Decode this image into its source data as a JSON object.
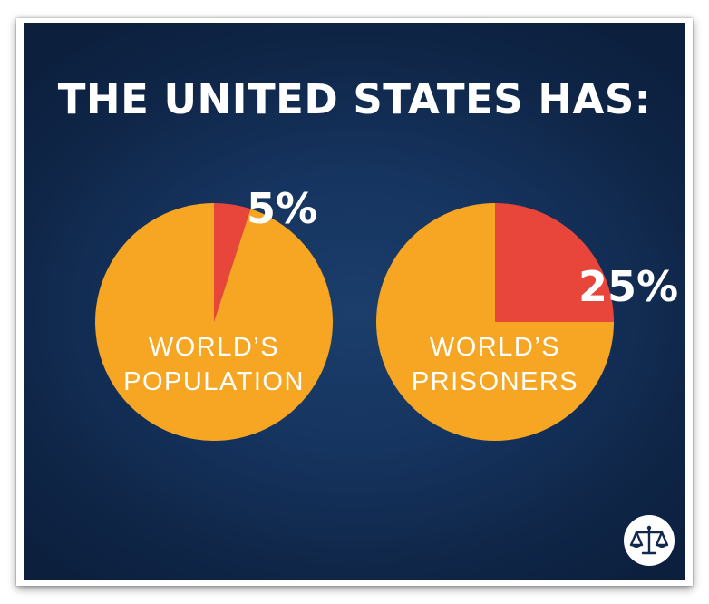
{
  "headline": "THE UNITED STATES HAS:",
  "chart_data": [
    {
      "type": "pie",
      "slices": [
        {
          "label": "5%",
          "value": 5,
          "color": "#e8463a"
        },
        {
          "label": "",
          "value": 95,
          "color": "#f6a623"
        }
      ],
      "caption": [
        "WORLD’S",
        "POPULATION"
      ]
    },
    {
      "type": "pie",
      "slices": [
        {
          "label": "25%",
          "value": 25,
          "color": "#e8463a"
        },
        {
          "label": "",
          "value": 75,
          "color": "#f6a623"
        }
      ],
      "caption": [
        "WORLD’S",
        "PRISONERS"
      ]
    }
  ],
  "logo": {
    "icon": "scales-of-justice-icon"
  },
  "colors": {
    "background": "#12294d",
    "highlight": "#e8463a",
    "remainder": "#f6a623",
    "text": "#ffffff"
  }
}
